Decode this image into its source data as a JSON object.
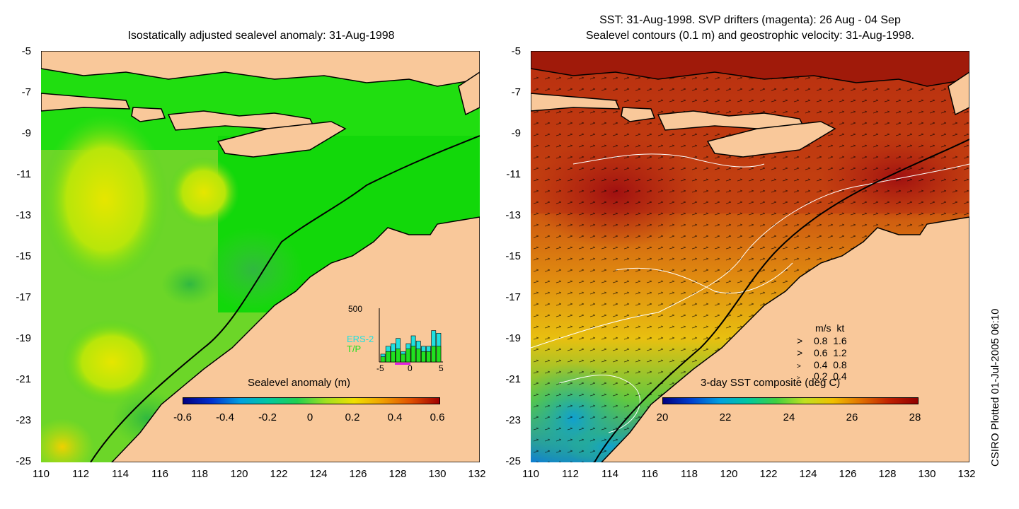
{
  "left_panel": {
    "title": "Isostatically adjusted sealevel anomaly: 31-Aug-1998",
    "y_ticks": [
      "-5",
      "-7",
      "-9",
      "-11",
      "-13",
      "-15",
      "-17",
      "-19",
      "-21",
      "-23",
      "-25"
    ],
    "x_ticks": [
      "110",
      "112",
      "114",
      "116",
      "118",
      "120",
      "122",
      "124",
      "126",
      "128",
      "130",
      "132"
    ],
    "colorbar": {
      "label": "Sealevel anomaly (m)",
      "ticks": [
        "-0.6",
        "-0.4",
        "-0.2",
        "0",
        "0.2",
        "0.4",
        "0.6"
      ]
    },
    "histogram": {
      "ymax_label": "500",
      "series_labels": [
        "ERS-2",
        "T/P"
      ],
      "x_ticks": [
        "-5",
        "0",
        "5"
      ],
      "ers2_heights": [
        0.15,
        0.3,
        0.35,
        0.45,
        0.2,
        0.35,
        0.5,
        0.4,
        0.3,
        0.3,
        0.6,
        0.55
      ],
      "tp_heights": [
        0.1,
        0.2,
        0.2,
        0.25,
        0.15,
        0.25,
        0.3,
        0.25,
        0.2,
        0.2,
        0.3,
        0.3
      ]
    }
  },
  "right_panel": {
    "title_line1": "SST: 31-Aug-1998. SVP drifters (magenta): 26 Aug - 04 Sep",
    "title_line2": "Sealevel contours (0.1 m) and geostrophic velocity: 31-Aug-1998.",
    "y_ticks": [
      "-5",
      "-7",
      "-9",
      "-11",
      "-13",
      "-15",
      "-17",
      "-19",
      "-21",
      "-23",
      "-25"
    ],
    "x_ticks": [
      "110",
      "112",
      "114",
      "116",
      "118",
      "120",
      "122",
      "124",
      "126",
      "128",
      "130",
      "132"
    ],
    "colorbar": {
      "label": "3-day SST composite (deg C)",
      "ticks": [
        "20",
        "22",
        "24",
        "26",
        "28"
      ]
    },
    "velocity_legend": {
      "header_ms": "m/s",
      "header_kt": "kt",
      "rows": [
        {
          "ms": "0.8",
          "kt": "1.6"
        },
        {
          "ms": "0.6",
          "kt": "1.2"
        },
        {
          "ms": "0.4",
          "kt": "0.8"
        },
        {
          "ms": "0.2",
          "kt": "0.4"
        }
      ]
    }
  },
  "side_note": "CSIRO Plotted 01-Jul-2005 06:10",
  "colors": {
    "land": "#f9c89a",
    "sla_background": "#1ee01e",
    "sst_background": "#c44010"
  }
}
